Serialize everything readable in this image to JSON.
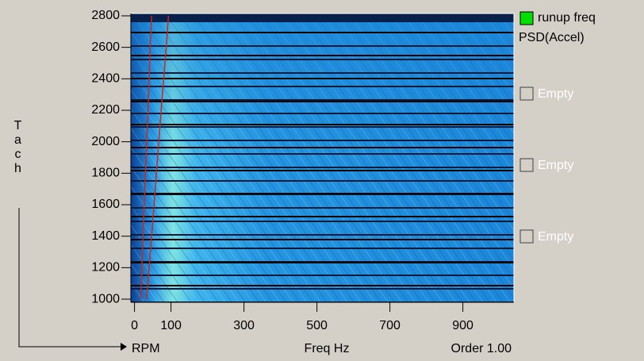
{
  "chart_data": {
    "type": "line",
    "y_label": "Tach",
    "x_label": "Freq Hz",
    "rpm_label": "RPM",
    "order_label": "Order 1.00",
    "xlim": [
      -10,
      1040
    ],
    "xticks": [
      0,
      100,
      300,
      500,
      700,
      900
    ],
    "ylim": [
      980,
      2815
    ],
    "yticks": [
      1000,
      1200,
      1400,
      1600,
      1800,
      2000,
      2200,
      2400,
      2600,
      2800
    ],
    "series": [
      {
        "color": "#c8281e",
        "x": [
          17,
          23,
          30,
          37,
          43,
          47
        ],
        "values": [
          1000,
          1400,
          1800,
          2200,
          2600,
          2800
        ]
      },
      {
        "color": "#c8281e",
        "x": [
          33,
          47,
          60,
          73,
          87,
          93
        ],
        "values": [
          1000,
          1400,
          1800,
          2200,
          2600,
          2800
        ]
      }
    ],
    "legend": {
      "label": "runup freq",
      "sublabel": "PSD(Accel)",
      "color": "#00e000",
      "slots": [
        "Empty",
        "Empty",
        "Empty"
      ]
    }
  }
}
